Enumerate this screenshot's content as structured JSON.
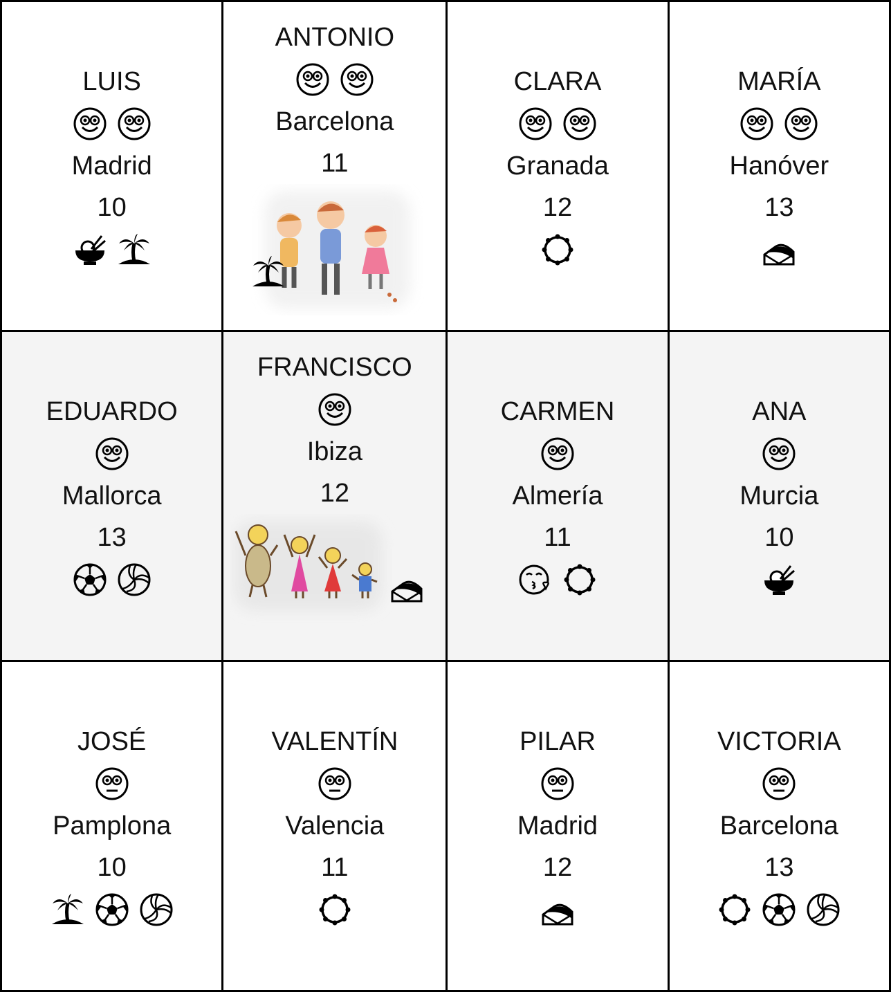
{
  "cards": [
    {
      "name": "LUIS",
      "city": "Madrid",
      "age": 10
    },
    {
      "name": "ANTONIO",
      "city": "Barcelona",
      "age": 11
    },
    {
      "name": "CLARA",
      "city": "Granada",
      "age": 12
    },
    {
      "name": "MARÍA",
      "city": "Hanóver",
      "age": 13
    },
    {
      "name": "EDUARDO",
      "city": "Mallorca",
      "age": 13
    },
    {
      "name": "FRANCISCO",
      "city": "Ibiza",
      "age": 12
    },
    {
      "name": "CARMEN",
      "city": "Almería",
      "age": 11
    },
    {
      "name": "ANA",
      "city": "Murcia",
      "age": 10
    },
    {
      "name": "JOSÉ",
      "city": "Pamplona",
      "age": 10
    },
    {
      "name": "VALENTÍN",
      "city": "Valencia",
      "age": 11
    },
    {
      "name": "PILAR",
      "city": "Madrid",
      "age": 12
    },
    {
      "name": "VICTORIA",
      "city": "Barcelona",
      "age": 13
    }
  ]
}
